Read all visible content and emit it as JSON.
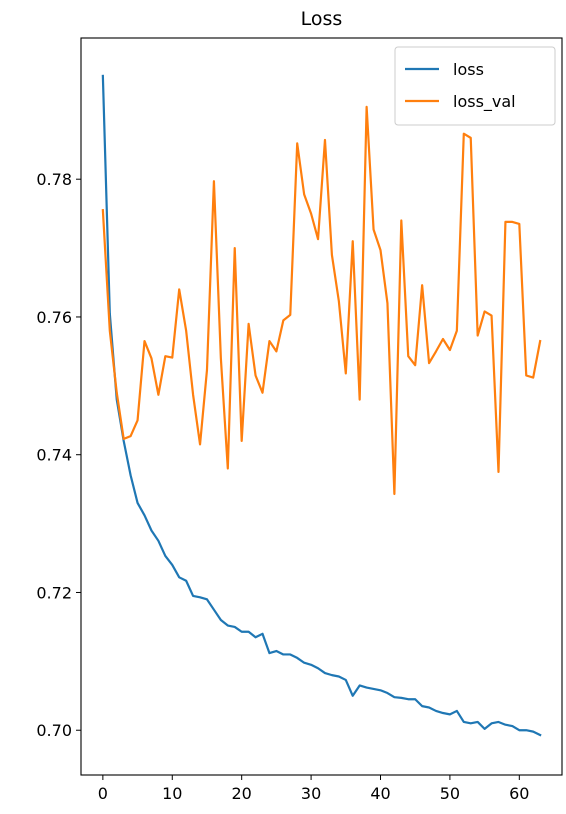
{
  "chart_data": {
    "type": "line",
    "title": "Loss",
    "xlabel": "",
    "ylabel": "",
    "xlim": [
      -3.15,
      66.15
    ],
    "ylim": [
      0.6935,
      0.8005
    ],
    "x_ticks": [
      0,
      10,
      20,
      30,
      40,
      50,
      60
    ],
    "y_ticks": [
      0.7,
      0.72,
      0.74,
      0.76,
      0.78
    ],
    "y_tick_labels": [
      "0.70",
      "0.72",
      "0.74",
      "0.76",
      "0.78"
    ],
    "grid": false,
    "legend_position": "top-right",
    "series": [
      {
        "name": "loss",
        "color": "#1f77b4",
        "x": [
          0,
          1,
          2,
          3,
          4,
          5,
          6,
          7,
          8,
          9,
          10,
          11,
          12,
          13,
          14,
          15,
          16,
          17,
          18,
          19,
          20,
          21,
          22,
          23,
          24,
          25,
          26,
          27,
          28,
          29,
          30,
          31,
          32,
          33,
          34,
          35,
          36,
          37,
          38,
          39,
          40,
          41,
          42,
          43,
          44,
          45,
          46,
          47,
          48,
          49,
          50,
          51,
          52,
          53,
          54,
          55,
          56,
          57,
          58,
          59,
          60,
          61,
          62,
          63
        ],
        "values": [
          0.795,
          0.7605,
          0.748,
          0.742,
          0.737,
          0.733,
          0.7312,
          0.729,
          0.7275,
          0.7253,
          0.724,
          0.7222,
          0.7217,
          0.7195,
          0.7193,
          0.719,
          0.7175,
          0.716,
          0.7152,
          0.715,
          0.7143,
          0.7143,
          0.7135,
          0.714,
          0.7112,
          0.7115,
          0.711,
          0.711,
          0.7105,
          0.7098,
          0.7095,
          0.709,
          0.7083,
          0.708,
          0.7078,
          0.7073,
          0.705,
          0.7065,
          0.7062,
          0.706,
          0.7058,
          0.7054,
          0.7048,
          0.7047,
          0.7045,
          0.7045,
          0.7035,
          0.7033,
          0.7028,
          0.7025,
          0.7023,
          0.7028,
          0.7012,
          0.701,
          0.7012,
          0.7002,
          0.701,
          0.7012,
          0.7008,
          0.7006,
          0.7,
          0.7,
          0.6998,
          0.6993
        ]
      },
      {
        "name": "loss_val",
        "color": "#ff7f0e",
        "x": [
          0,
          1,
          2,
          3,
          4,
          5,
          6,
          7,
          8,
          9,
          10,
          11,
          12,
          13,
          14,
          15,
          16,
          17,
          18,
          19,
          20,
          21,
          22,
          23,
          24,
          25,
          26,
          27,
          28,
          29,
          30,
          31,
          32,
          33,
          34,
          35,
          36,
          37,
          38,
          39,
          40,
          41,
          42,
          43,
          44,
          45,
          46,
          47,
          48,
          49,
          50,
          51,
          52,
          53,
          54,
          55,
          56,
          57,
          58,
          59,
          60,
          61,
          62,
          63
        ],
        "values": [
          0.7755,
          0.758,
          0.749,
          0.7423,
          0.7427,
          0.745,
          0.7565,
          0.754,
          0.7487,
          0.7543,
          0.7541,
          0.764,
          0.758,
          0.7487,
          0.7415,
          0.7523,
          0.7797,
          0.754,
          0.738,
          0.77,
          0.742,
          0.759,
          0.7515,
          0.749,
          0.7565,
          0.755,
          0.7595,
          0.7603,
          0.7852,
          0.7778,
          0.775,
          0.7713,
          0.7857,
          0.769,
          0.7623,
          0.7518,
          0.771,
          0.748,
          0.7905,
          0.7727,
          0.7697,
          0.762,
          0.7343,
          0.774,
          0.7543,
          0.753,
          0.7646,
          0.7533,
          0.755,
          0.7568,
          0.7552,
          0.758,
          0.7866,
          0.786,
          0.7573,
          0.7608,
          0.7602,
          0.7375,
          0.7738,
          0.7738,
          0.7735,
          0.7515,
          0.7512,
          0.7565
        ]
      }
    ]
  }
}
